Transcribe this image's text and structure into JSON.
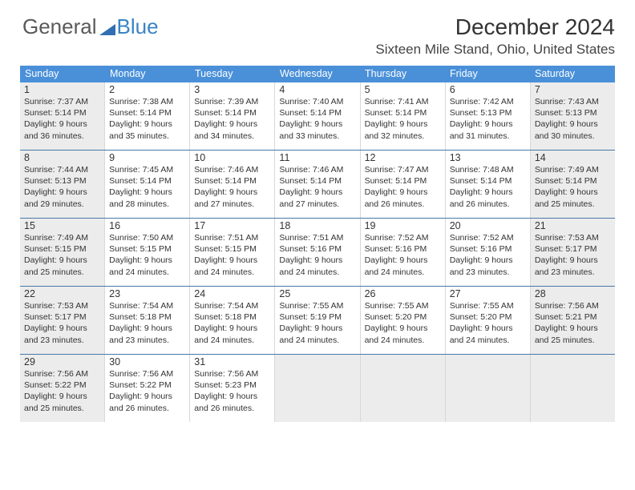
{
  "logo": {
    "part1": "General",
    "part2": "Blue"
  },
  "title": "December 2024",
  "location": "Sixteen Mile Stand, Ohio, United States",
  "colors": {
    "header_bg": "#4a90d9",
    "header_text": "#ffffff",
    "rule": "#4a78a8",
    "shade": "#ececec",
    "logo_gray": "#5a5a5a",
    "logo_blue": "#3a84c4"
  },
  "dayHeaders": [
    "Sunday",
    "Monday",
    "Tuesday",
    "Wednesday",
    "Thursday",
    "Friday",
    "Saturday"
  ],
  "weeks": [
    [
      {
        "n": "1",
        "shade": true,
        "sr": "7:37 AM",
        "ss": "5:14 PM",
        "dl": "9 hours and 36 minutes."
      },
      {
        "n": "2",
        "shade": false,
        "sr": "7:38 AM",
        "ss": "5:14 PM",
        "dl": "9 hours and 35 minutes."
      },
      {
        "n": "3",
        "shade": false,
        "sr": "7:39 AM",
        "ss": "5:14 PM",
        "dl": "9 hours and 34 minutes."
      },
      {
        "n": "4",
        "shade": false,
        "sr": "7:40 AM",
        "ss": "5:14 PM",
        "dl": "9 hours and 33 minutes."
      },
      {
        "n": "5",
        "shade": false,
        "sr": "7:41 AM",
        "ss": "5:14 PM",
        "dl": "9 hours and 32 minutes."
      },
      {
        "n": "6",
        "shade": false,
        "sr": "7:42 AM",
        "ss": "5:13 PM",
        "dl": "9 hours and 31 minutes."
      },
      {
        "n": "7",
        "shade": true,
        "sr": "7:43 AM",
        "ss": "5:13 PM",
        "dl": "9 hours and 30 minutes."
      }
    ],
    [
      {
        "n": "8",
        "shade": true,
        "sr": "7:44 AM",
        "ss": "5:13 PM",
        "dl": "9 hours and 29 minutes."
      },
      {
        "n": "9",
        "shade": false,
        "sr": "7:45 AM",
        "ss": "5:14 PM",
        "dl": "9 hours and 28 minutes."
      },
      {
        "n": "10",
        "shade": false,
        "sr": "7:46 AM",
        "ss": "5:14 PM",
        "dl": "9 hours and 27 minutes."
      },
      {
        "n": "11",
        "shade": false,
        "sr": "7:46 AM",
        "ss": "5:14 PM",
        "dl": "9 hours and 27 minutes."
      },
      {
        "n": "12",
        "shade": false,
        "sr": "7:47 AM",
        "ss": "5:14 PM",
        "dl": "9 hours and 26 minutes."
      },
      {
        "n": "13",
        "shade": false,
        "sr": "7:48 AM",
        "ss": "5:14 PM",
        "dl": "9 hours and 26 minutes."
      },
      {
        "n": "14",
        "shade": true,
        "sr": "7:49 AM",
        "ss": "5:14 PM",
        "dl": "9 hours and 25 minutes."
      }
    ],
    [
      {
        "n": "15",
        "shade": true,
        "sr": "7:49 AM",
        "ss": "5:15 PM",
        "dl": "9 hours and 25 minutes."
      },
      {
        "n": "16",
        "shade": false,
        "sr": "7:50 AM",
        "ss": "5:15 PM",
        "dl": "9 hours and 24 minutes."
      },
      {
        "n": "17",
        "shade": false,
        "sr": "7:51 AM",
        "ss": "5:15 PM",
        "dl": "9 hours and 24 minutes."
      },
      {
        "n": "18",
        "shade": false,
        "sr": "7:51 AM",
        "ss": "5:16 PM",
        "dl": "9 hours and 24 minutes."
      },
      {
        "n": "19",
        "shade": false,
        "sr": "7:52 AM",
        "ss": "5:16 PM",
        "dl": "9 hours and 24 minutes."
      },
      {
        "n": "20",
        "shade": false,
        "sr": "7:52 AM",
        "ss": "5:16 PM",
        "dl": "9 hours and 23 minutes."
      },
      {
        "n": "21",
        "shade": true,
        "sr": "7:53 AM",
        "ss": "5:17 PM",
        "dl": "9 hours and 23 minutes."
      }
    ],
    [
      {
        "n": "22",
        "shade": true,
        "sr": "7:53 AM",
        "ss": "5:17 PM",
        "dl": "9 hours and 23 minutes."
      },
      {
        "n": "23",
        "shade": false,
        "sr": "7:54 AM",
        "ss": "5:18 PM",
        "dl": "9 hours and 23 minutes."
      },
      {
        "n": "24",
        "shade": false,
        "sr": "7:54 AM",
        "ss": "5:18 PM",
        "dl": "9 hours and 24 minutes."
      },
      {
        "n": "25",
        "shade": false,
        "sr": "7:55 AM",
        "ss": "5:19 PM",
        "dl": "9 hours and 24 minutes."
      },
      {
        "n": "26",
        "shade": false,
        "sr": "7:55 AM",
        "ss": "5:20 PM",
        "dl": "9 hours and 24 minutes."
      },
      {
        "n": "27",
        "shade": false,
        "sr": "7:55 AM",
        "ss": "5:20 PM",
        "dl": "9 hours and 24 minutes."
      },
      {
        "n": "28",
        "shade": true,
        "sr": "7:56 AM",
        "ss": "5:21 PM",
        "dl": "9 hours and 25 minutes."
      }
    ],
    [
      {
        "n": "29",
        "shade": true,
        "sr": "7:56 AM",
        "ss": "5:22 PM",
        "dl": "9 hours and 25 minutes."
      },
      {
        "n": "30",
        "shade": false,
        "sr": "7:56 AM",
        "ss": "5:22 PM",
        "dl": "9 hours and 26 minutes."
      },
      {
        "n": "31",
        "shade": false,
        "sr": "7:56 AM",
        "ss": "5:23 PM",
        "dl": "9 hours and 26 minutes."
      },
      {
        "empty": true
      },
      {
        "empty": true
      },
      {
        "empty": true
      },
      {
        "empty": true
      }
    ]
  ],
  "labels": {
    "sunrise": "Sunrise:",
    "sunset": "Sunset:",
    "daylight": "Daylight:"
  }
}
